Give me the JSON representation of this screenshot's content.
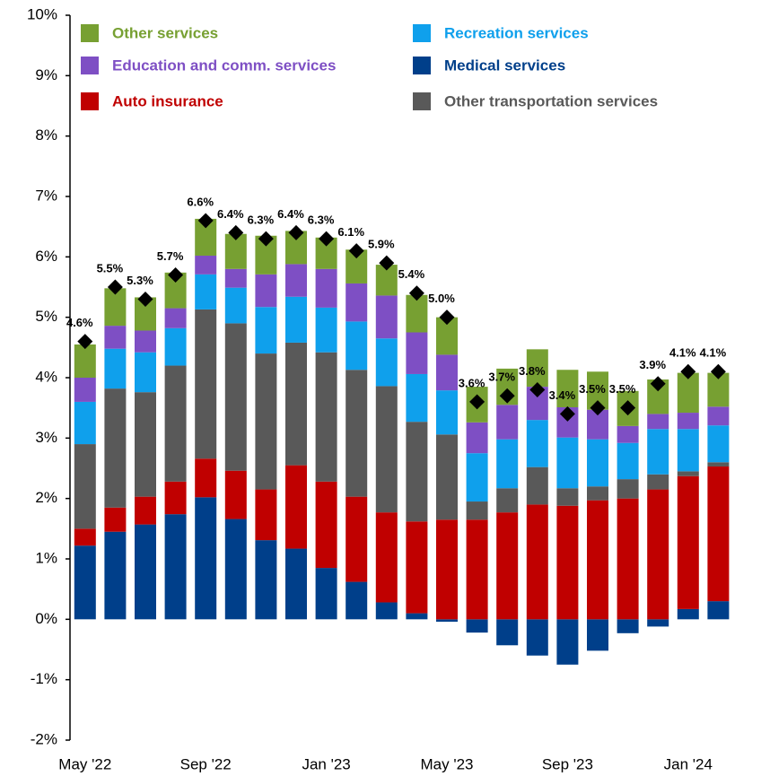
{
  "chart_data": {
    "type": "stacked_bar",
    "categories": [
      "May '22",
      null,
      null,
      null,
      "Sep '22",
      null,
      null,
      null,
      "Jan '23",
      null,
      null,
      null,
      "May '23",
      null,
      null,
      null,
      "Sep '23",
      null,
      null,
      null,
      "Jan '24",
      null
    ],
    "series": [
      {
        "name": "Medical services",
        "color": "#003f8a",
        "values": [
          1.22,
          1.45,
          1.57,
          1.74,
          2.02,
          1.66,
          1.31,
          1.17,
          0.85,
          0.62,
          0.28,
          0.1,
          -0.04,
          -0.22,
          -0.43,
          -0.6,
          -0.75,
          -0.52,
          -0.23,
          -0.12,
          0.17,
          0.3
        ]
      },
      {
        "name": "Auto insurance",
        "color": "#c00000",
        "values": [
          0.28,
          0.4,
          0.46,
          0.54,
          0.64,
          0.8,
          0.84,
          1.38,
          1.43,
          1.41,
          1.49,
          1.52,
          1.65,
          1.65,
          1.77,
          1.9,
          1.88,
          1.97,
          2.0,
          2.15,
          2.2,
          2.23
        ]
      },
      {
        "name": "Other transportation services",
        "color": "#595959",
        "values": [
          1.4,
          1.97,
          1.73,
          1.92,
          2.47,
          2.44,
          2.25,
          2.03,
          2.14,
          2.1,
          2.09,
          1.65,
          1.41,
          0.3,
          0.4,
          0.62,
          0.29,
          0.23,
          0.32,
          0.25,
          0.08,
          0.07
        ]
      },
      {
        "name": "Recreation services",
        "color": "#0fa0ec",
        "values": [
          0.7,
          0.66,
          0.66,
          0.62,
          0.58,
          0.59,
          0.77,
          0.76,
          0.74,
          0.8,
          0.79,
          0.79,
          0.73,
          0.8,
          0.81,
          0.78,
          0.84,
          0.78,
          0.6,
          0.75,
          0.7,
          0.61
        ]
      },
      {
        "name": "Education and comm. services",
        "color": "#7e4fc4",
        "values": [
          0.4,
          0.38,
          0.36,
          0.33,
          0.31,
          0.31,
          0.54,
          0.54,
          0.64,
          0.63,
          0.71,
          0.69,
          0.59,
          0.51,
          0.57,
          0.55,
          0.5,
          0.49,
          0.28,
          0.25,
          0.27,
          0.31
        ]
      },
      {
        "name": "Other services",
        "color": "#77a032",
        "values": [
          0.55,
          0.62,
          0.55,
          0.59,
          0.61,
          0.58,
          0.64,
          0.55,
          0.52,
          0.56,
          0.51,
          0.62,
          0.62,
          0.59,
          0.6,
          0.62,
          0.62,
          0.63,
          0.58,
          0.57,
          0.66,
          0.56
        ]
      }
    ],
    "totals": {
      "color": "#000000",
      "values": [
        4.6,
        5.5,
        5.3,
        5.7,
        6.6,
        6.4,
        6.3,
        6.4,
        6.3,
        6.1,
        5.9,
        5.4,
        5.0,
        3.6,
        3.7,
        3.8,
        3.4,
        3.5,
        3.5,
        3.9,
        4.1,
        4.1
      ],
      "value_labels": [
        "4.6%",
        "5.5%",
        "5.3%",
        "5.7%",
        "6.6%",
        "6.4%",
        "6.3%",
        "6.4%",
        "6.3%",
        "6.1%",
        "5.9%",
        "5.4%",
        "5.0%",
        "3.6%",
        "3.7%",
        "3.8%",
        "3.4%",
        "3.5%",
        "3.5%",
        "3.9%",
        "4.1%",
        "4.1%"
      ]
    },
    "ylim": [
      -2,
      10
    ],
    "yticks": [
      {
        "value": -2,
        "label": "-2%"
      },
      {
        "value": -1,
        "label": "-1%"
      },
      {
        "value": 0,
        "label": "0%"
      },
      {
        "value": 1,
        "label": "1%"
      },
      {
        "value": 2,
        "label": "2%"
      },
      {
        "value": 3,
        "label": "3%"
      },
      {
        "value": 4,
        "label": "4%"
      },
      {
        "value": 5,
        "label": "5%"
      },
      {
        "value": 6,
        "label": "6%"
      },
      {
        "value": 7,
        "label": "7%"
      },
      {
        "value": 8,
        "label": "8%"
      },
      {
        "value": 9,
        "label": "9%"
      },
      {
        "value": 10,
        "label": "10%"
      }
    ],
    "grid": false
  }
}
